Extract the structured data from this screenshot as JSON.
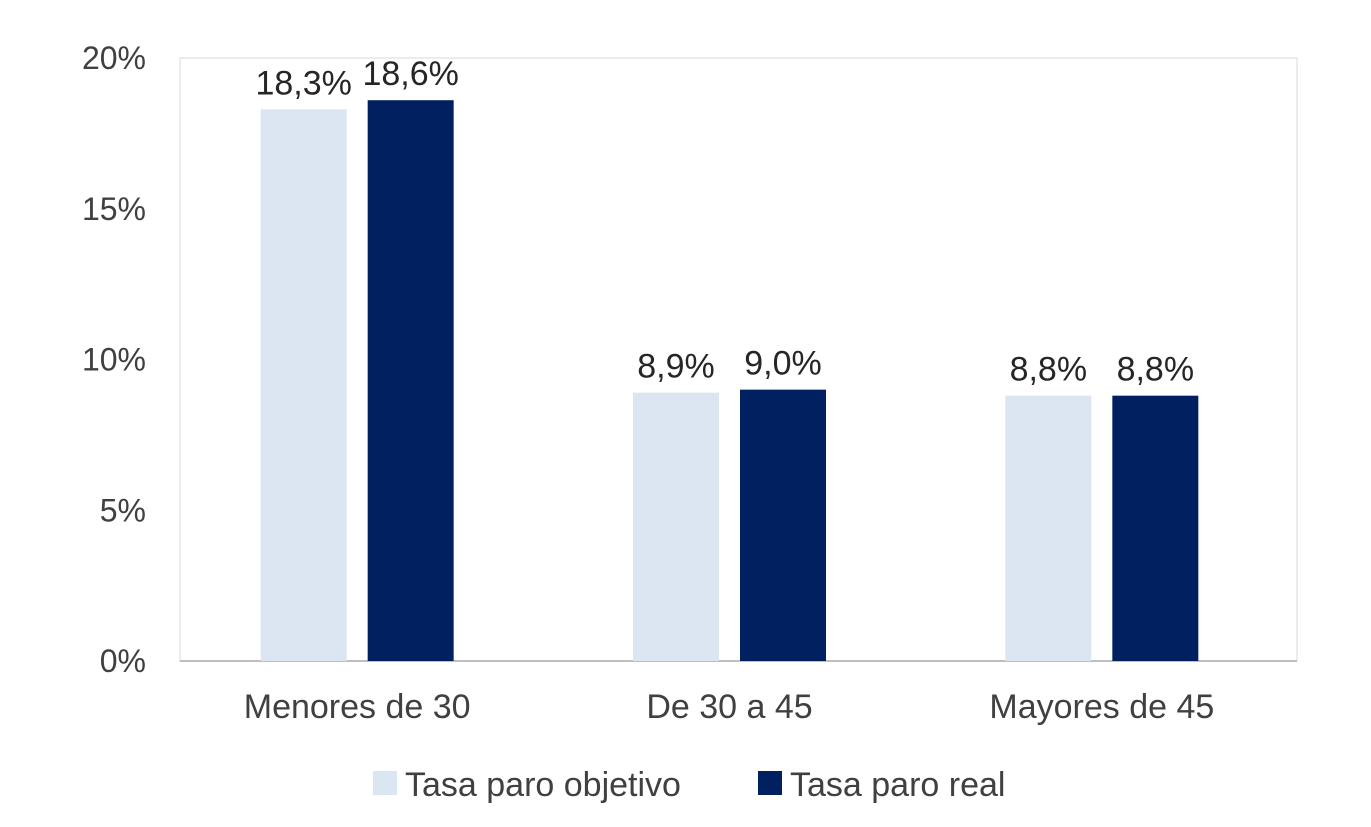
{
  "chart_data": {
    "type": "bar",
    "title": "",
    "xlabel": "",
    "ylabel": "",
    "categories": [
      "Menores de 30",
      "De 30 a 45",
      "Mayores de 45"
    ],
    "series": [
      {
        "name": "Tasa paro objetivo",
        "values": [
          18.3,
          8.9,
          8.8
        ],
        "labels": [
          "18,3%",
          "8,9%",
          "8,8%"
        ],
        "color": "#dce6f2"
      },
      {
        "name": "Tasa paro real",
        "values": [
          18.6,
          9.0,
          8.8
        ],
        "labels": [
          "18,6%",
          "9,0%",
          "8,8%"
        ],
        "color": "#002060"
      }
    ],
    "ylim": [
      0,
      20
    ],
    "yticks": [
      0,
      5,
      10,
      15,
      20
    ],
    "ytick_labels": [
      "0%",
      "5%",
      "10%",
      "15%",
      "20%"
    ],
    "grid": false,
    "legend_position": "bottom",
    "plot_border_color": "#d9d9d9",
    "axis_color": "#bfbfbf"
  }
}
